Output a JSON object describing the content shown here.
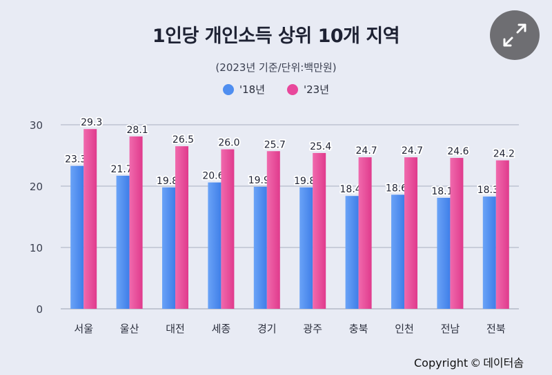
{
  "header": {
    "title": "1인당 개인소득 상위 10개 지역",
    "subtitle": "(2023년 기준/단위:백만원)"
  },
  "legend": [
    {
      "label": "'18년",
      "color": "#4f8ef0"
    },
    {
      "label": "'23년",
      "color": "#e8479b"
    }
  ],
  "expand_button": {
    "icon": "expand-arrows-icon"
  },
  "footer": {
    "copyright_text": "Copyright",
    "copyright_symbol": "©",
    "brand": "데이터솜"
  },
  "chart_data": {
    "type": "bar",
    "title": "1인당 개인소득 상위 10개 지역",
    "subtitle": "(2023년 기준/단위:백만원)",
    "categories": [
      "서울",
      "울산",
      "대전",
      "세종",
      "경기",
      "광주",
      "충북",
      "인천",
      "전남",
      "전북"
    ],
    "series": [
      {
        "name": "'18년",
        "color": "#4f8ef0",
        "values": [
          23.3,
          21.7,
          19.8,
          20.6,
          19.9,
          19.8,
          18.4,
          18.6,
          18.1,
          18.3
        ]
      },
      {
        "name": "'23년",
        "color": "#e8479b",
        "values": [
          29.3,
          28.1,
          26.5,
          26.0,
          25.7,
          25.4,
          24.7,
          24.7,
          24.6,
          24.2
        ]
      }
    ],
    "y_ticks": [
      "0",
      "10",
      "20",
      "30"
    ],
    "ylim": [
      0,
      30
    ],
    "grid": true,
    "legend_position": "top-center"
  }
}
